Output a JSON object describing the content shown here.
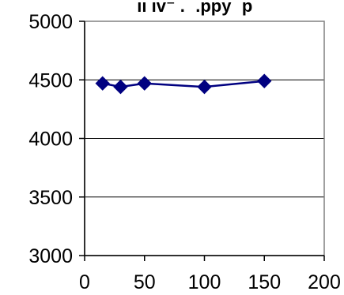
{
  "chart_data": {
    "type": "line",
    "title_fragment": "ıı ıv⁻ . ‾.ppy ‾p‾",
    "xlabel": "",
    "ylabel": "",
    "xlim": [
      0,
      200
    ],
    "ylim": [
      3000,
      5000
    ],
    "x_ticks": [
      0,
      50,
      100,
      150,
      200
    ],
    "y_ticks": [
      3000,
      3500,
      4000,
      4500,
      5000
    ],
    "grid": {
      "horizontal": true,
      "vertical": false
    },
    "series": [
      {
        "x": [
          15,
          30,
          50,
          100,
          150
        ],
        "y": [
          4470,
          4440,
          4470,
          4440,
          4490
        ]
      }
    ],
    "colors": {
      "series": "#000080",
      "grid": "#000000",
      "plot_frame": "#808080",
      "axis": "#000000"
    },
    "marker": "diamond"
  }
}
